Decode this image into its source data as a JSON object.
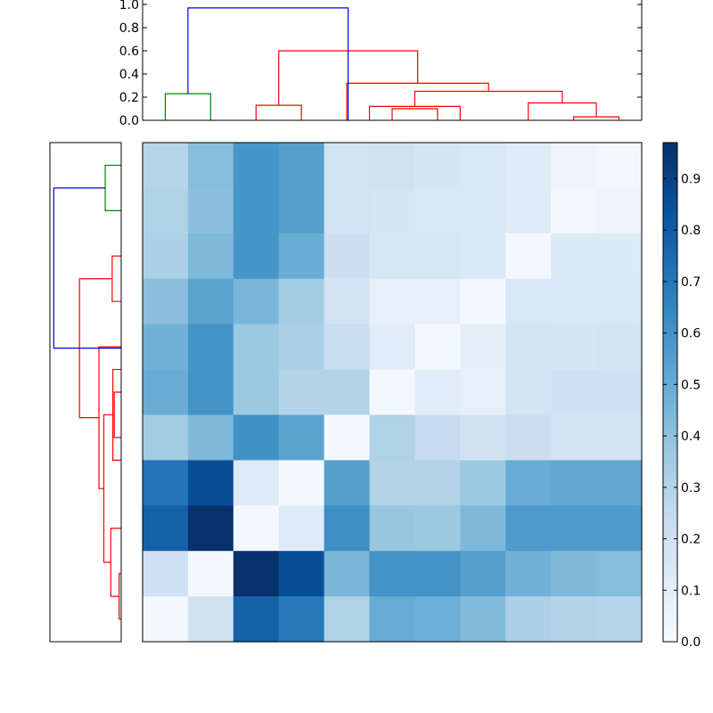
{
  "chart_data": {
    "type": "heatmap",
    "title": "",
    "colorscale": "Blues",
    "colorbar": {
      "range": [
        0.0,
        0.97
      ],
      "ticks": [
        "0.0",
        "0.1",
        "0.2",
        "0.3",
        "0.4",
        "0.5",
        "0.6",
        "0.7",
        "0.8",
        "0.9"
      ]
    },
    "matrix": [
      [
        0.29,
        0.42,
        0.59,
        0.55,
        0.18,
        0.19,
        0.17,
        0.15,
        0.12,
        0.05,
        0.02
      ],
      [
        0.31,
        0.41,
        0.59,
        0.55,
        0.18,
        0.17,
        0.15,
        0.15,
        0.12,
        0.02,
        0.05
      ],
      [
        0.32,
        0.44,
        0.59,
        0.49,
        0.21,
        0.16,
        0.16,
        0.14,
        0.02,
        0.13,
        0.13
      ],
      [
        0.41,
        0.53,
        0.45,
        0.35,
        0.18,
        0.08,
        0.08,
        0.02,
        0.15,
        0.15,
        0.15
      ],
      [
        0.47,
        0.6,
        0.37,
        0.32,
        0.23,
        0.11,
        0.02,
        0.09,
        0.18,
        0.17,
        0.18
      ],
      [
        0.49,
        0.6,
        0.37,
        0.3,
        0.3,
        0.02,
        0.11,
        0.08,
        0.18,
        0.2,
        0.2
      ],
      [
        0.35,
        0.44,
        0.61,
        0.53,
        0.02,
        0.31,
        0.24,
        0.19,
        0.21,
        0.18,
        0.18
      ],
      [
        0.72,
        0.86,
        0.12,
        0.02,
        0.55,
        0.3,
        0.3,
        0.37,
        0.49,
        0.51,
        0.51
      ],
      [
        0.79,
        0.97,
        0.02,
        0.12,
        0.62,
        0.38,
        0.37,
        0.44,
        0.57,
        0.57,
        0.57
      ],
      [
        0.2,
        0.02,
        0.97,
        0.86,
        0.45,
        0.6,
        0.6,
        0.55,
        0.47,
        0.44,
        0.42
      ],
      [
        0.02,
        0.19,
        0.79,
        0.7,
        0.31,
        0.5,
        0.48,
        0.43,
        0.32,
        0.3,
        0.29
      ]
    ],
    "top_dendrogram": {
      "ylim": [
        0,
        1.0
      ],
      "yticks": [
        "0.0",
        "0.2",
        "0.4",
        "0.6",
        "0.8",
        "1.0"
      ],
      "links": [
        {
          "x1": 0.5,
          "x2": 1.5,
          "h": 0.23,
          "color": "#008000"
        },
        {
          "x1": 2.5,
          "x2": 3.5,
          "h": 0.13,
          "color": "#ff0000"
        },
        {
          "x1": 5.5,
          "x2": 6.5,
          "h": 0.1,
          "color": "#ff0000"
        },
        {
          "x1": 5.0,
          "x2": 7.0,
          "h": 0.12,
          "color": "#ff0000"
        },
        {
          "x1": 9.5,
          "x2": 10.5,
          "h": 0.03,
          "color": "#ff0000"
        },
        {
          "x1": 8.5,
          "x2": 10.0,
          "h": 0.15,
          "color": "#ff0000"
        },
        {
          "x1": 6.0,
          "x2": 9.25,
          "h": 0.25,
          "color": "#ff0000"
        },
        {
          "x1": 4.5,
          "x2": 7.625,
          "h": 0.32,
          "color": "#ff0000"
        },
        {
          "x1": 3.0,
          "x2": 6.0625,
          "h": 0.6,
          "color": "#ff0000"
        },
        {
          "x1": 1.0,
          "x2": 4.53,
          "h": 0.97,
          "color": "#0000ff"
        }
      ]
    },
    "left_dendrogram": {
      "hlim": [
        0,
        1.0
      ],
      "links": [
        {
          "y1": 0.5,
          "y2": 1.5,
          "h": 0.23,
          "color": "#008000"
        },
        {
          "y1": 2.5,
          "y2": 3.5,
          "h": 0.13,
          "color": "#ff0000"
        },
        {
          "y1": 5.5,
          "y2": 6.5,
          "h": 0.1,
          "color": "#ff0000"
        },
        {
          "y1": 5.0,
          "y2": 7.0,
          "h": 0.12,
          "color": "#ff0000"
        },
        {
          "y1": 9.5,
          "y2": 10.5,
          "h": 0.03,
          "color": "#ff0000"
        },
        {
          "y1": 8.5,
          "y2": 10.0,
          "h": 0.15,
          "color": "#ff0000"
        },
        {
          "y1": 6.0,
          "y2": 9.25,
          "h": 0.25,
          "color": "#ff0000"
        },
        {
          "y1": 4.5,
          "y2": 7.625,
          "h": 0.32,
          "color": "#ff0000"
        },
        {
          "y1": 3.0,
          "y2": 6.0625,
          "h": 0.6,
          "color": "#ff0000"
        },
        {
          "y1": 1.0,
          "y2": 4.53,
          "h": 0.97,
          "color": "#0000ff"
        }
      ]
    }
  }
}
